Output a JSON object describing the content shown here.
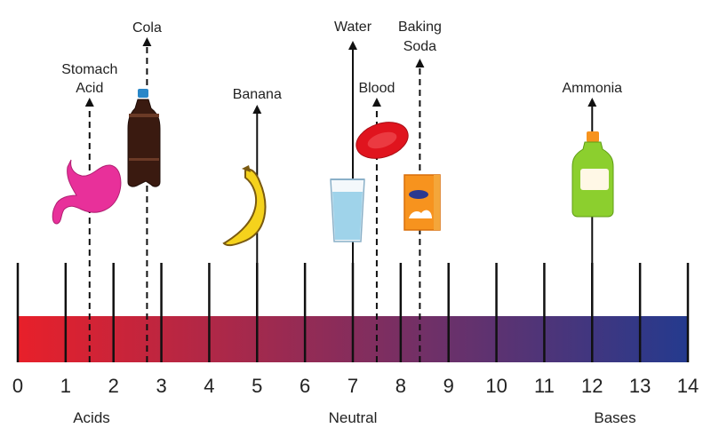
{
  "scale": {
    "min": 0,
    "max": 14,
    "tick_labels": [
      "0",
      "1",
      "2",
      "3",
      "4",
      "5",
      "6",
      "7",
      "8",
      "9",
      "10",
      "11",
      "12",
      "13",
      "14"
    ],
    "gradient_start": "#e8202a",
    "gradient_end": "#243a8e"
  },
  "categories": {
    "acids": "Acids",
    "neutral": "Neutral",
    "bases": "Bases"
  },
  "substances": [
    {
      "id": "stomach-acid",
      "label_lines": [
        "Stomach",
        "Acid"
      ],
      "ph": 1.5,
      "line": "dashed",
      "icon": "stomach-icon",
      "color": "#e8309a"
    },
    {
      "id": "cola",
      "label_lines": [
        "Cola"
      ],
      "ph": 2.7,
      "line": "dashed",
      "icon": "cola-bottle-icon",
      "color": "#3a1a10"
    },
    {
      "id": "banana",
      "label_lines": [
        "Banana"
      ],
      "ph": 5.0,
      "line": "solid",
      "icon": "banana-icon",
      "color": "#f5d21c"
    },
    {
      "id": "water",
      "label_lines": [
        "Water"
      ],
      "ph": 7.0,
      "line": "solid",
      "icon": "water-glass-icon",
      "color": "#9fd3ea"
    },
    {
      "id": "blood",
      "label_lines": [
        "Blood"
      ],
      "ph": 7.5,
      "line": "dashed",
      "icon": "blood-cell-icon",
      "color": "#e0141e"
    },
    {
      "id": "baking-soda",
      "label_lines": [
        "Baking",
        "Soda"
      ],
      "ph": 8.4,
      "line": "dashed",
      "icon": "baking-soda-box-icon",
      "color": "#f7931e"
    },
    {
      "id": "ammonia",
      "label_lines": [
        "Ammonia"
      ],
      "ph": 12.0,
      "line": "solid",
      "icon": "ammonia-bottle-icon",
      "color": "#8ccf2e"
    }
  ]
}
